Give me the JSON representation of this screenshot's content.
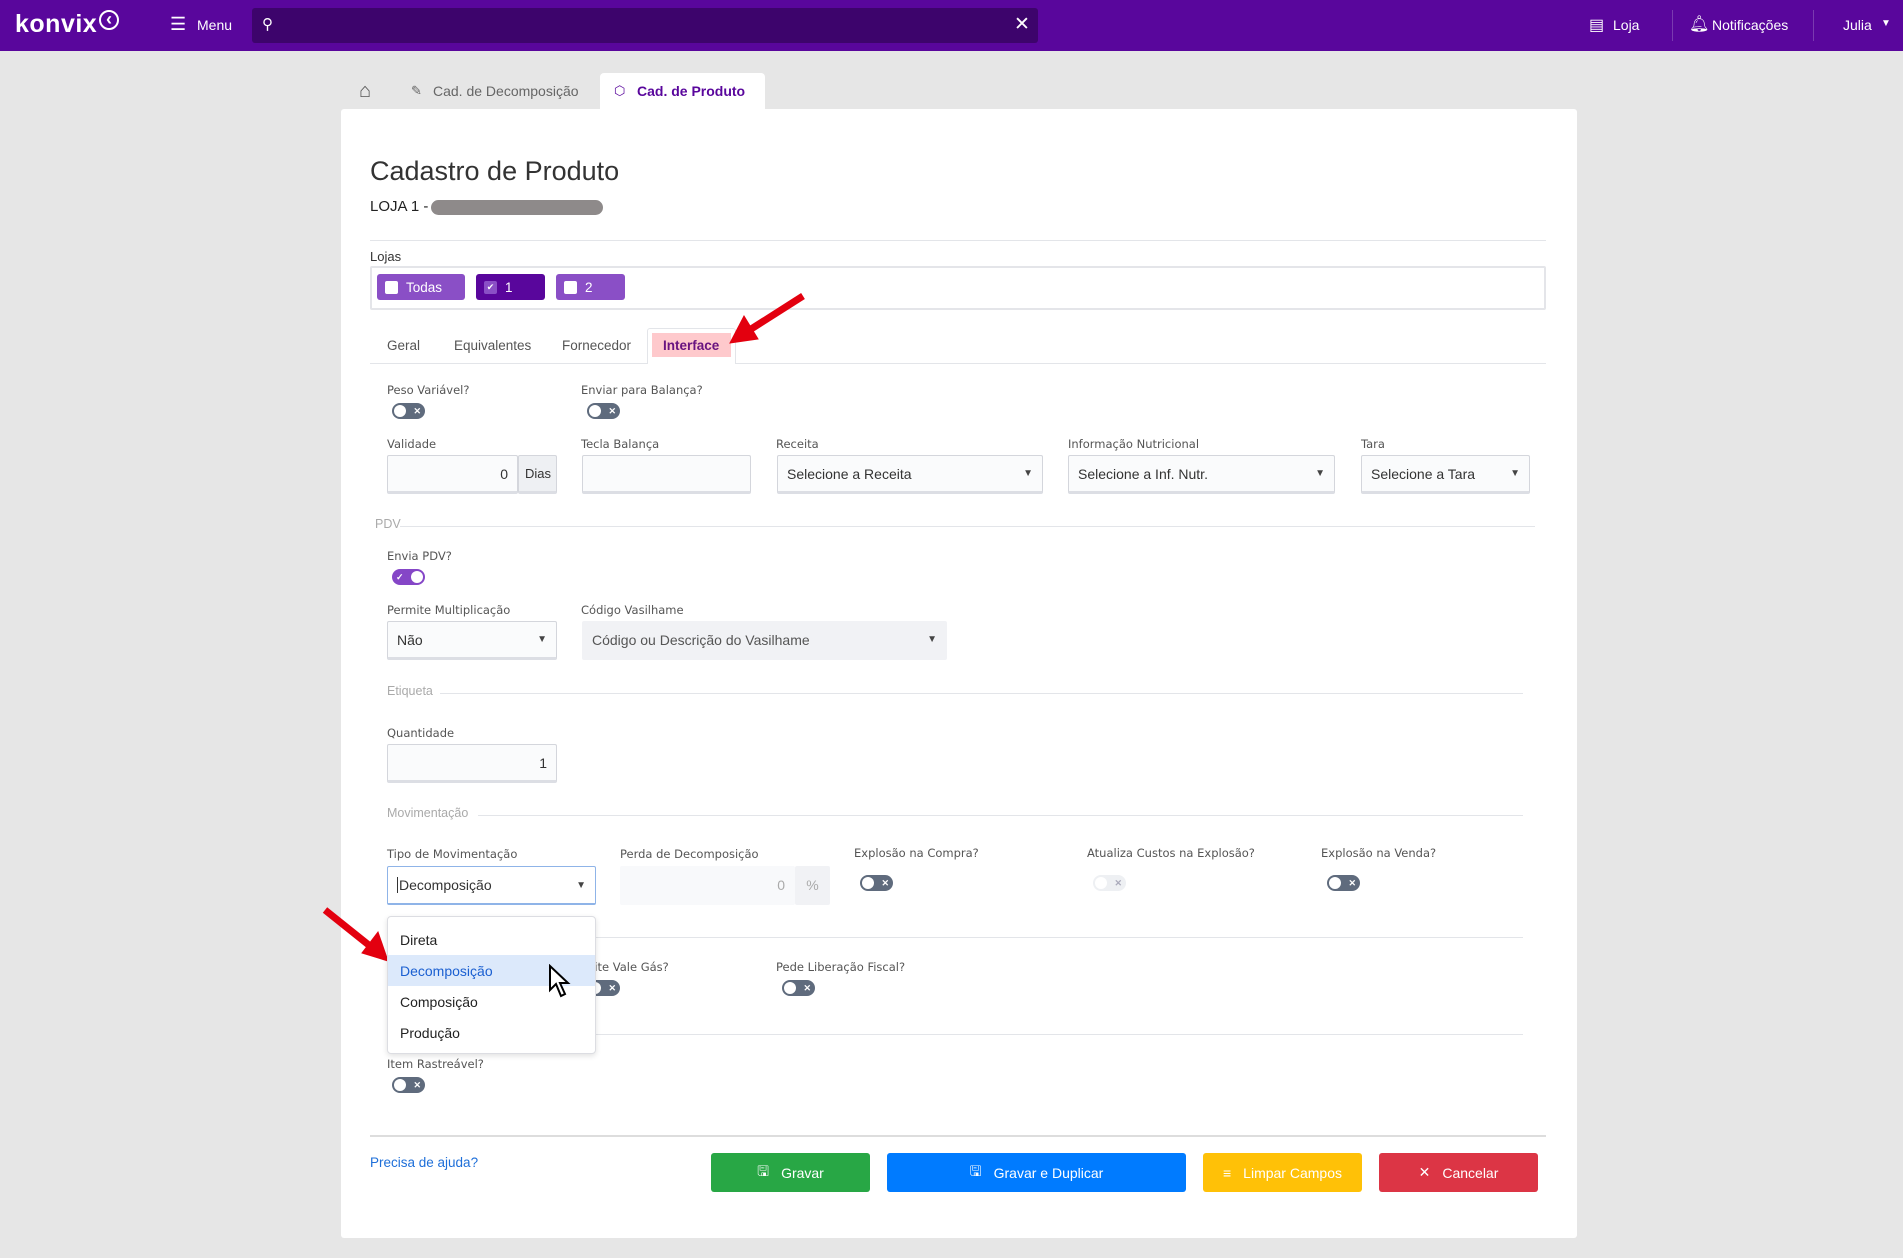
{
  "topbar": {
    "logo": "konvix",
    "menu_label": "Menu",
    "search_value": "",
    "store_label": "Loja",
    "notifications_label": "Notificações",
    "user_name": "Julia"
  },
  "breadcrumb_tabs": [
    {
      "label": "Cad. de Decomposição",
      "icon": "pencil-icon"
    },
    {
      "label": "Cad. de Produto",
      "icon": "box-icon",
      "active": true
    }
  ],
  "page": {
    "title": "Cadastro de Produto",
    "store_prefix": "LOJA 1 -"
  },
  "lojas": {
    "label": "Lojas",
    "chips": [
      {
        "label": "Todas",
        "checked": false
      },
      {
        "label": "1",
        "checked": true
      },
      {
        "label": "2",
        "checked": false
      }
    ]
  },
  "tabs": [
    "Geral",
    "Equivalentes",
    "Fornecedor",
    "Interface"
  ],
  "active_tab": "Interface",
  "form": {
    "peso_variavel": {
      "label": "Peso Variável?",
      "on": false
    },
    "enviar_balanca": {
      "label": "Enviar para Balança?",
      "on": false
    },
    "validade": {
      "label": "Validade",
      "value": "0",
      "addon": "Dias"
    },
    "tecla_balanca": {
      "label": "Tecla Balança",
      "value": ""
    },
    "receita": {
      "label": "Receita",
      "value": "Selecione a Receita"
    },
    "inf_nutricional": {
      "label": "Informação Nutricional",
      "value": "Selecione a Inf. Nutr."
    },
    "tara": {
      "label": "Tara",
      "value": "Selecione a Tara"
    },
    "section_pdv": "PDV",
    "envia_pdv": {
      "label": "Envia PDV?",
      "on": true
    },
    "permite_multiplicacao": {
      "label": "Permite Multiplicação",
      "value": "Não"
    },
    "codigo_vasilhame": {
      "label": "Código Vasilhame",
      "placeholder": "Código ou Descrição do Vasilhame"
    },
    "section_etiqueta": "Etiqueta",
    "quantidade": {
      "label": "Quantidade",
      "value": "1"
    },
    "section_movimentacao": "Movimentação",
    "tipo_movimentacao": {
      "label": "Tipo de Movimentação",
      "value": "Decomposição",
      "options": [
        "Direta",
        "Decomposição",
        "Composição",
        "Produção"
      ],
      "highlighted": "Decomposição"
    },
    "perda_decomposicao": {
      "label": "Perda de Decomposição",
      "value": "0",
      "addon": "%"
    },
    "explosao_compra": {
      "label": "Explosão na Compra?",
      "on": false
    },
    "atualiza_custos": {
      "label": "Atualiza Custos na Explosão?",
      "on": false,
      "disabled": true
    },
    "explosao_venda": {
      "label": "Explosão na Venda?",
      "on": false
    },
    "permite_vale_gas": {
      "label": "Permite Vale Gás?",
      "on": false
    },
    "pede_liberacao_fiscal": {
      "label": "Pede Liberação Fiscal?",
      "on": false
    },
    "item_rastreavel": {
      "label": "Item Rastreável?",
      "on": false
    }
  },
  "footer": {
    "help_link": "Precisa de ajuda?",
    "save": "Gravar",
    "save_duplicate": "Gravar e Duplicar",
    "clear": "Limpar Campos",
    "cancel": "Cancelar"
  },
  "colors": {
    "brand": "#59069c",
    "save": "#28a745",
    "save_duplicate": "#007bff",
    "clear": "#ffc107",
    "cancel": "#dc3545",
    "annotation_arrow": "#e3000f"
  }
}
